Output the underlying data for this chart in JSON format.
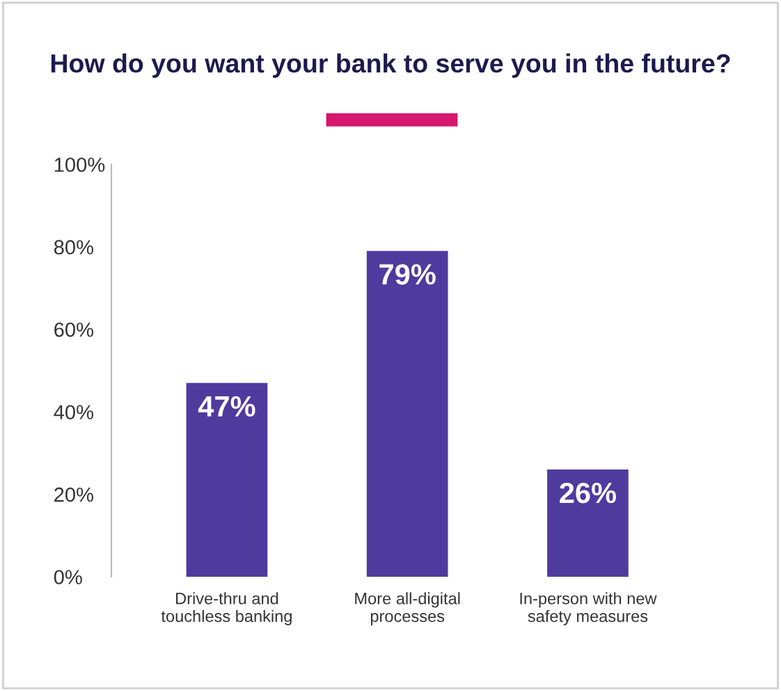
{
  "chart_data": {
    "type": "bar",
    "title": "How do you want your bank to serve you in the future?",
    "categories": [
      "Drive-thru and\ntouchless banking",
      "More all-digital\nprocesses",
      "In-person with new\nsafety measures"
    ],
    "values": [
      47,
      79,
      26
    ],
    "color": "#4f3a9e",
    "value_labels": [
      "47%",
      "79%",
      "26%"
    ],
    "ylim": [
      0,
      100
    ],
    "yticks": [
      {
        "value": 0,
        "label": "0%"
      },
      {
        "value": 20,
        "label": "20%"
      },
      {
        "value": 40,
        "label": "40%"
      },
      {
        "value": 60,
        "label": "60%"
      },
      {
        "value": 80,
        "label": "80%"
      },
      {
        "value": 100,
        "label": "100%"
      }
    ],
    "grid": false,
    "legend": false
  }
}
